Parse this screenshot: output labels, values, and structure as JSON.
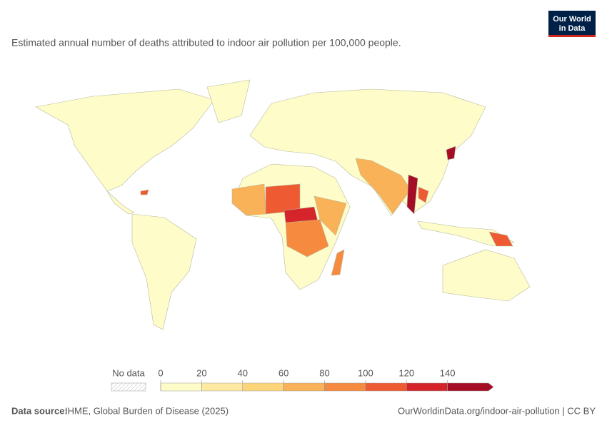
{
  "chart_data": {
    "type": "choropleth",
    "logo": [
      "Our World",
      "in Data"
    ],
    "title": "Estimated annual number of deaths attributed to indoor air pollution per 100,000 people.",
    "legend": {
      "no_data": "No data",
      "bins": [
        0,
        20,
        40,
        60,
        80,
        100,
        120,
        140
      ],
      "colors": [
        "#fefdc9",
        "#fde9a2",
        "#fcd57a",
        "#f9b257",
        "#f68b40",
        "#ee5a32",
        "#d5252a",
        "#a50d26"
      ]
    },
    "source_label": "Data source:",
    "source": "IHME, Global Burden of Disease (2025)",
    "url": "OurWorldinData.org/indoor-air-pollution | CC BY"
  }
}
